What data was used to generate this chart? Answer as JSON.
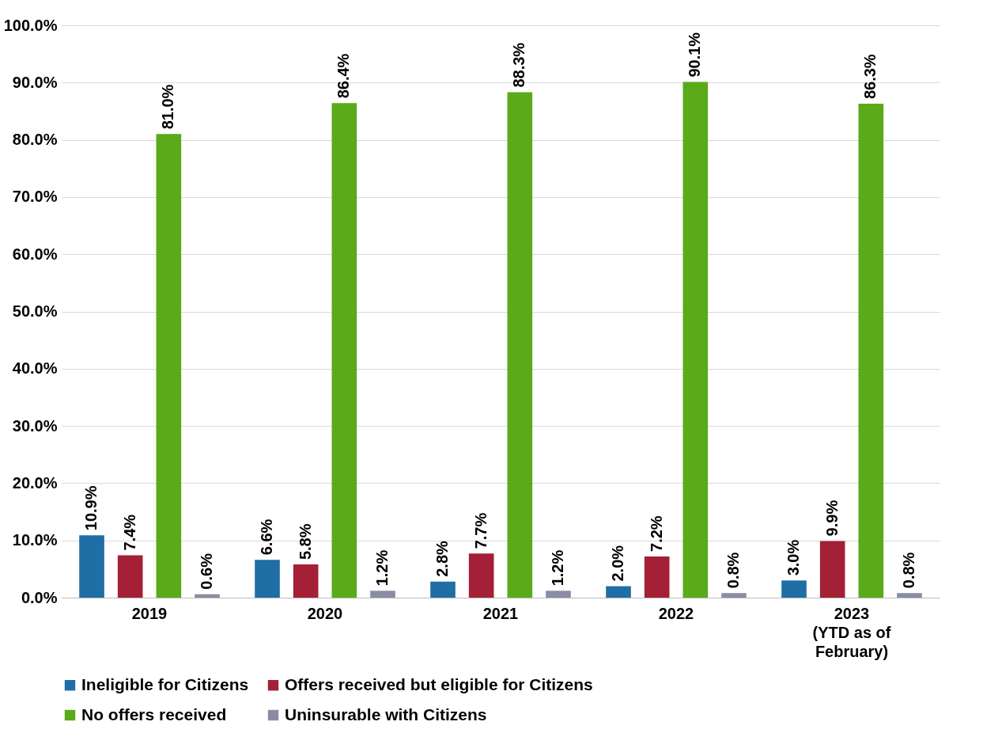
{
  "chart_data": {
    "type": "bar",
    "categories": [
      "2019",
      "2020",
      "2021",
      "2022",
      "2023\n(YTD as of\nFebruary)"
    ],
    "series": [
      {
        "name": "Ineligible for Citizens",
        "color": "#1f6ea6",
        "values": [
          10.9,
          6.6,
          2.8,
          2.0,
          3.0
        ],
        "value_labels": [
          "10.9%",
          "6.6%",
          "2.8%",
          "2.0%",
          "3.0%"
        ]
      },
      {
        "name": "Offers received but eligible for Citizens",
        "color": "#a32036",
        "values": [
          7.4,
          5.8,
          7.7,
          7.2,
          9.9
        ],
        "value_labels": [
          "7.4%",
          "5.8%",
          "7.7%",
          "7.2%",
          "9.9%"
        ]
      },
      {
        "name": "No offers received",
        "color": "#5aaa1a",
        "values": [
          81.0,
          86.4,
          88.3,
          90.1,
          86.3
        ],
        "value_labels": [
          "81.0%",
          "86.4%",
          "88.3%",
          "90.1%",
          "86.3%"
        ]
      },
      {
        "name": "Uninsurable with Citizens",
        "color": "#8a8ca6",
        "values": [
          0.6,
          1.2,
          1.2,
          0.8,
          0.8
        ],
        "value_labels": [
          "0.6%",
          "1.2%",
          "1.2%",
          "0.8%",
          "0.8%"
        ]
      }
    ],
    "ylim": [
      0,
      100
    ],
    "yticks": [
      {
        "value": 0,
        "label": "0.0%"
      },
      {
        "value": 10,
        "label": "10.0%"
      },
      {
        "value": 20,
        "label": "20.0%"
      },
      {
        "value": 30,
        "label": "30.0%"
      },
      {
        "value": 40,
        "label": "40.0%"
      },
      {
        "value": 50,
        "label": "50.0%"
      },
      {
        "value": 60,
        "label": "60.0%"
      },
      {
        "value": 70,
        "label": "70.0%"
      },
      {
        "value": 80,
        "label": "80.0%"
      },
      {
        "value": 90,
        "label": "90.0%"
      },
      {
        "value": 100,
        "label": "100.0%"
      }
    ],
    "grid": "y",
    "legend": "bottom"
  }
}
